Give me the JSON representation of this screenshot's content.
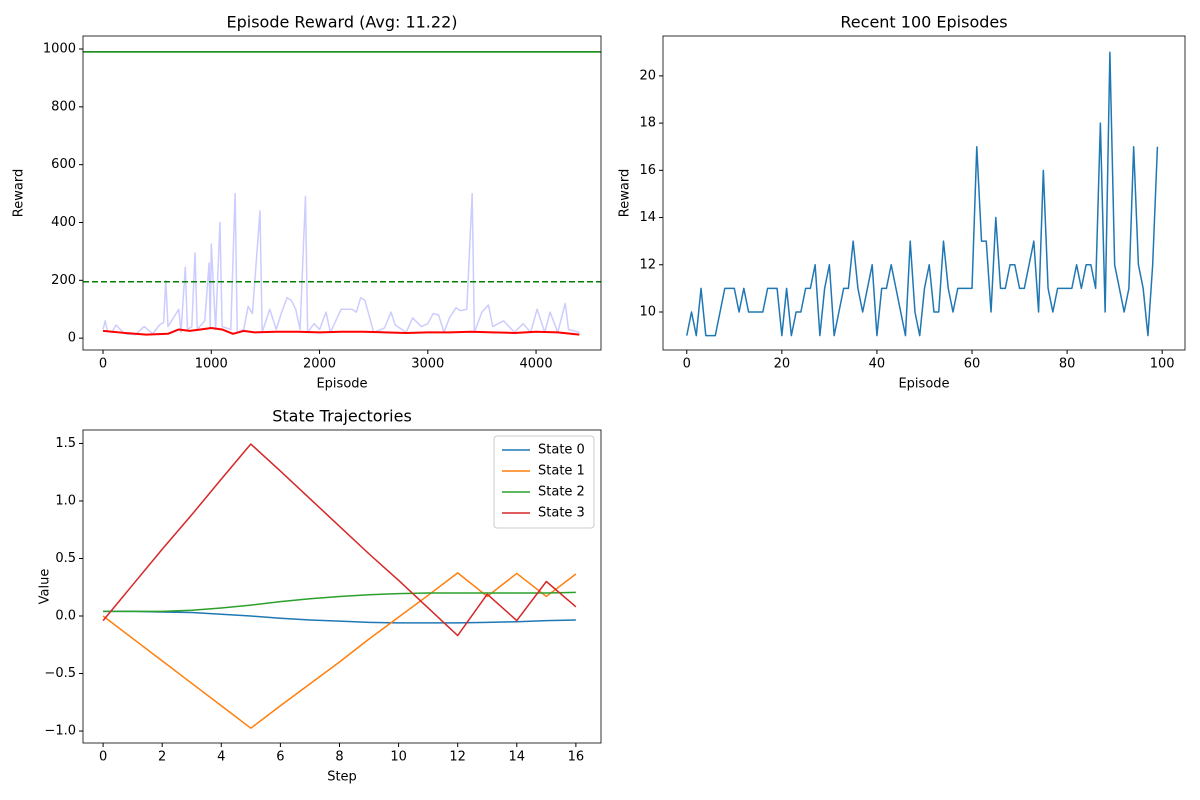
{
  "chart_data": [
    {
      "type": "line",
      "title": "Episode Reward (Avg: 11.22)",
      "xlabel": "Episode",
      "ylabel": "Reward",
      "xlim": [
        -185,
        4600
      ],
      "ylim": [
        -41,
        1045
      ],
      "xticks": [
        0,
        1000,
        2000,
        3000,
        4000
      ],
      "yticks": [
        0,
        200,
        400,
        600,
        800,
        1000
      ],
      "series": [
        {
          "color": "#ccccff",
          "width": 1.5,
          "x": [
            0,
            20,
            40,
            80,
            120,
            200,
            300,
            380,
            460,
            520,
            560,
            580,
            600,
            700,
            720,
            760,
            780,
            820,
            850,
            870,
            940,
            980,
            990,
            1000,
            1040,
            1080,
            1100,
            1180,
            1220,
            1240,
            1300,
            1340,
            1380,
            1450,
            1470,
            1540,
            1600,
            1650,
            1700,
            1740,
            1780,
            1820,
            1870,
            1890,
            1950,
            2000,
            2060,
            2100,
            2200,
            2240,
            2300,
            2340,
            2380,
            2420,
            2500,
            2600,
            2660,
            2700,
            2800,
            2860,
            2940,
            3000,
            3050,
            3100,
            3150,
            3200,
            3260,
            3300,
            3360,
            3410,
            3430,
            3500,
            3560,
            3600,
            3700,
            3800,
            3880,
            3950,
            4010,
            4080,
            4130,
            4200,
            4270,
            4300,
            4400
          ],
          "values": [
            30,
            60,
            25,
            20,
            45,
            15,
            12,
            40,
            15,
            45,
            55,
            200,
            40,
            100,
            20,
            245,
            30,
            40,
            295,
            30,
            60,
            260,
            40,
            325,
            30,
            400,
            40,
            30,
            500,
            20,
            30,
            110,
            85,
            440,
            20,
            100,
            30,
            90,
            140,
            130,
            100,
            30,
            490,
            20,
            50,
            30,
            90,
            20,
            100,
            100,
            100,
            90,
            140,
            130,
            20,
            35,
            90,
            45,
            20,
            70,
            40,
            50,
            85,
            80,
            20,
            70,
            105,
            95,
            100,
            500,
            20,
            90,
            115,
            40,
            60,
            20,
            50,
            20,
            100,
            20,
            90,
            20,
            120,
            30,
            20
          ]
        },
        {
          "color": "#ff0000",
          "width": 2,
          "x": [
            0,
            200,
            400,
            600,
            700,
            800,
            900,
            1000,
            1100,
            1200,
            1300,
            1400,
            1600,
            1800,
            2000,
            2200,
            2400,
            2600,
            2800,
            3000,
            3200,
            3400,
            3600,
            3800,
            4000,
            4200,
            4400
          ],
          "values": [
            25,
            18,
            12,
            15,
            30,
            25,
            30,
            35,
            30,
            15,
            25,
            20,
            22,
            22,
            20,
            22,
            22,
            20,
            18,
            20,
            20,
            22,
            20,
            18,
            22,
            20,
            12
          ]
        }
      ],
      "hlines": [
        {
          "value": 990,
          "color": "#008000",
          "style": "solid"
        },
        {
          "value": 195,
          "color": "#008000",
          "style": "dashed"
        }
      ]
    },
    {
      "type": "line",
      "title": "Recent 100 Episodes",
      "xlabel": "Episode",
      "ylabel": "Reward",
      "xlim": [
        -5,
        104.8
      ],
      "ylim": [
        8.39,
        21.69
      ],
      "xticks": [
        0,
        20,
        40,
        60,
        80,
        100
      ],
      "yticks": [
        10,
        12,
        14,
        16,
        18,
        20
      ],
      "x": [
        0,
        1,
        2,
        3,
        4,
        5,
        6,
        7,
        8,
        9,
        10,
        11,
        12,
        13,
        14,
        15,
        16,
        17,
        18,
        19,
        20,
        21,
        22,
        23,
        24,
        25,
        26,
        27,
        28,
        29,
        30,
        31,
        32,
        33,
        34,
        35,
        36,
        37,
        38,
        39,
        40,
        41,
        42,
        43,
        44,
        45,
        46,
        47,
        48,
        49,
        50,
        51,
        52,
        53,
        54,
        55,
        56,
        57,
        58,
        59,
        60,
        61,
        62,
        63,
        64,
        65,
        66,
        67,
        68,
        69,
        70,
        71,
        72,
        73,
        74,
        75,
        76,
        77,
        78,
        79,
        80,
        81,
        82,
        83,
        84,
        85,
        86,
        87,
        88,
        89,
        90,
        91,
        92,
        93,
        94,
        95,
        96,
        97,
        98,
        99
      ],
      "series": [
        {
          "color": "#1f77b4",
          "width": 1.5,
          "values": [
            9,
            10,
            9,
            11,
            9,
            9,
            9,
            10,
            11,
            11,
            11,
            10,
            11,
            10,
            10,
            10,
            10,
            11,
            11,
            11,
            9,
            11,
            9,
            10,
            10,
            11,
            11,
            12,
            9,
            11,
            12,
            9,
            10,
            11,
            11,
            13,
            11,
            10,
            11,
            12,
            9,
            11,
            11,
            12,
            11,
            10,
            9,
            13,
            10,
            9,
            11,
            12,
            10,
            10,
            13,
            11,
            10,
            11,
            11,
            11,
            11,
            17,
            13,
            13,
            10,
            14,
            11,
            11,
            12,
            12,
            11,
            11,
            12,
            13,
            10,
            16,
            11,
            10,
            11,
            11,
            11,
            11,
            12,
            11,
            12,
            12,
            11,
            18,
            10,
            21,
            12,
            11,
            10,
            11,
            17,
            12,
            11,
            9,
            12,
            17
          ]
        }
      ]
    },
    {
      "type": "line",
      "title": "State Trajectories",
      "xlabel": "Step",
      "ylabel": "Value",
      "xlim": [
        -0.68,
        16.85
      ],
      "ylim": [
        -1.104,
        1.617
      ],
      "xticks": [
        0,
        2,
        4,
        6,
        8,
        10,
        12,
        14,
        16
      ],
      "yticks": [
        {
          "value": -1,
          "label": "−1.0"
        },
        {
          "value": -0.5,
          "label": "−0.5"
        },
        {
          "value": 0,
          "label": "0.0"
        },
        {
          "value": 0.5,
          "label": "0.5"
        },
        {
          "value": 1,
          "label": "1.0"
        },
        {
          "value": 1.5,
          "label": "1.5"
        }
      ],
      "legend": "upper right",
      "x": [
        0,
        1,
        2,
        3,
        4,
        5,
        6,
        7,
        8,
        9,
        10,
        11,
        12,
        13,
        14,
        15,
        16
      ],
      "series": [
        {
          "name": "State 0",
          "color": "#1f77b4",
          "width": 1.5,
          "values": [
            0.04,
            0.04,
            0.035,
            0.03,
            0.015,
            0.0,
            -0.02,
            -0.035,
            -0.045,
            -0.055,
            -0.06,
            -0.06,
            -0.06,
            -0.055,
            -0.05,
            -0.04,
            -0.035
          ]
        },
        {
          "name": "State 1",
          "color": "#ff7f0e",
          "width": 1.5,
          "values": [
            0,
            -0.195,
            -0.39,
            -0.585,
            -0.78,
            -0.975,
            -0.78,
            -0.59,
            -0.4,
            -0.2,
            -0.01,
            0.18,
            0.375,
            0.17,
            0.37,
            0.17,
            0.365
          ]
        },
        {
          "name": "State 2",
          "color": "#2ca02c",
          "width": 1.5,
          "values": [
            0.04,
            0.04,
            0.04,
            0.05,
            0.07,
            0.095,
            0.125,
            0.15,
            0.17,
            0.185,
            0.195,
            0.2,
            0.2,
            0.2,
            0.2,
            0.2,
            0.205
          ]
        },
        {
          "name": "State 3",
          "color": "#d62728",
          "width": 1.5,
          "values": [
            -0.04,
            0.27,
            0.58,
            0.88,
            1.19,
            1.495,
            1.26,
            1.02,
            0.78,
            0.54,
            0.31,
            0.07,
            -0.17,
            0.19,
            -0.04,
            0.3,
            0.08
          ]
        }
      ]
    }
  ]
}
